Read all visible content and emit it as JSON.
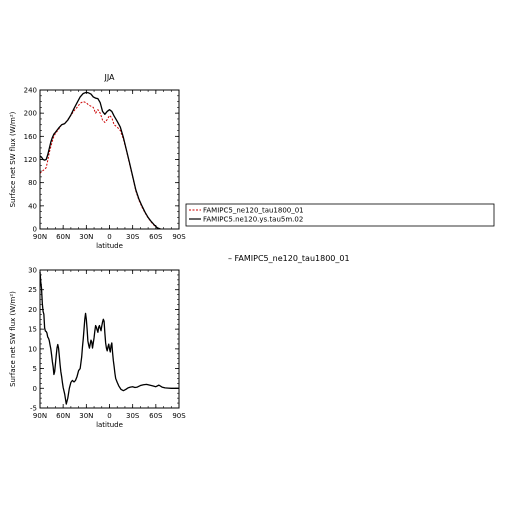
{
  "chart_data": [
    {
      "type": "line",
      "title": "JJA",
      "xlabel": "latitude",
      "ylabel": "Surface net SW flux (W/m²)",
      "x_ticks": [
        {
          "value": 90,
          "label": "90N"
        },
        {
          "value": 60,
          "label": "60N"
        },
        {
          "value": 30,
          "label": "30N"
        },
        {
          "value": 0,
          "label": "0"
        },
        {
          "value": -30,
          "label": "30S"
        },
        {
          "value": -60,
          "label": "60S"
        },
        {
          "value": -90,
          "label": "90S"
        }
      ],
      "xlim": [
        90,
        -90
      ],
      "ylim": [
        0,
        240
      ],
      "y_ticks": [
        0,
        40,
        80,
        120,
        160,
        200,
        240
      ],
      "grid": false,
      "legend_position": "right",
      "series": [
        {
          "name": "FAMIPC5_ne120_tau1800_01",
          "color": "#cc0000",
          "style": "dashed",
          "x": [
            90,
            88,
            86,
            84,
            82,
            80,
            78,
            76,
            74,
            72,
            70,
            66,
            62,
            58,
            54,
            50,
            46,
            42,
            38,
            34,
            30,
            27,
            24,
            21,
            18,
            15,
            12,
            9,
            6,
            3,
            0,
            -3,
            -6,
            -10,
            -14,
            -18,
            -22,
            -26,
            -30,
            -34,
            -38,
            -42,
            -46,
            -50,
            -54,
            -58,
            -62,
            -66
          ],
          "y": [
            96,
            99,
            101,
            103,
            106,
            118,
            132,
            142,
            152,
            160,
            165,
            172,
            180,
            182,
            189,
            196,
            204,
            210,
            217,
            220,
            218,
            214,
            212,
            210,
            200,
            206,
            200,
            188,
            184,
            189,
            196,
            192,
            180,
            176,
            170,
            155,
            135,
            112,
            90,
            66,
            50,
            38,
            28,
            19,
            12,
            6,
            2,
            0
          ]
        },
        {
          "name": "FAMIPC5.ne120.ys.tau5m.02",
          "color": "#000000",
          "style": "solid",
          "x": [
            90,
            88,
            86,
            84,
            82,
            80,
            78,
            76,
            74,
            72,
            70,
            66,
            62,
            58,
            54,
            50,
            46,
            42,
            38,
            34,
            30,
            27,
            24,
            21,
            18,
            15,
            12,
            9,
            6,
            3,
            0,
            -3,
            -6,
            -10,
            -14,
            -18,
            -22,
            -26,
            -30,
            -34,
            -38,
            -42,
            -46,
            -50,
            -54,
            -58,
            -62,
            -66
          ],
          "y": [
            126,
            124,
            120,
            119,
            120,
            128,
            139,
            150,
            158,
            164,
            167,
            174,
            180,
            182,
            188,
            197,
            208,
            218,
            228,
            234,
            236,
            235,
            233,
            228,
            226,
            225,
            218,
            203,
            198,
            203,
            206,
            203,
            195,
            186,
            176,
            158,
            136,
            114,
            91,
            68,
            52,
            40,
            29,
            20,
            13,
            7,
            2,
            0
          ]
        }
      ]
    },
    {
      "type": "line",
      "title": "",
      "xlabel": "latitude",
      "ylabel": "Surface net SW flux (W/m²)",
      "x_ticks": [
        {
          "value": 90,
          "label": "90N"
        },
        {
          "value": 60,
          "label": "60N"
        },
        {
          "value": 30,
          "label": "30N"
        },
        {
          "value": 0,
          "label": "0"
        },
        {
          "value": -30,
          "label": "30S"
        },
        {
          "value": -60,
          "label": "60S"
        },
        {
          "value": -90,
          "label": "90S"
        }
      ],
      "xlim": [
        90,
        -90
      ],
      "ylim": [
        -5,
        30
      ],
      "y_ticks": [
        -5,
        0,
        5,
        10,
        15,
        20,
        25,
        30
      ],
      "grid": false,
      "note": "– FAMIPC5_ne120_tau1800_01",
      "series": [
        {
          "color": "#000000",
          "style": "solid",
          "x": [
            90,
            89,
            88,
            87,
            86,
            85,
            84,
            83,
            82,
            81,
            80,
            79,
            78,
            77,
            76,
            75,
            74,
            73,
            72,
            71,
            70,
            69,
            68,
            67,
            66,
            65,
            64,
            63,
            62,
            61,
            60,
            58,
            56,
            54,
            52,
            50,
            48,
            46,
            44,
            42,
            40,
            38,
            37,
            36,
            35,
            34,
            33,
            32,
            31,
            30,
            29,
            28,
            27,
            26,
            25,
            24,
            23,
            22,
            21,
            20,
            19,
            18,
            17,
            16,
            15,
            14,
            13,
            12,
            11,
            10,
            9,
            8,
            7,
            6,
            5,
            4,
            3,
            2,
            1,
            0,
            -1,
            -2,
            -3,
            -4,
            -5,
            -6,
            -7,
            -8,
            -10,
            -12,
            -15,
            -18,
            -21,
            -24,
            -27,
            -30,
            -33,
            -36,
            -40,
            -44,
            -48,
            -52,
            -56,
            -60,
            -64,
            -68,
            -72,
            -76,
            -80,
            -85,
            -90
          ],
          "y": [
            29.5,
            27.0,
            25.3,
            21.5,
            19.5,
            18.8,
            15.3,
            14.5,
            14.4,
            14.0,
            13.0,
            12.7,
            12.1,
            11.0,
            10.0,
            8.5,
            6.8,
            5.5,
            3.5,
            4.2,
            6.2,
            8.3,
            10.2,
            11.1,
            10.2,
            8.2,
            6.0,
            4.2,
            3.0,
            1.5,
            0.2,
            -1.5,
            -4.0,
            -2.5,
            0.0,
            1.5,
            2.0,
            1.6,
            2.0,
            3.0,
            4.5,
            5.0,
            6.5,
            8.0,
            10.5,
            12.5,
            15.0,
            17.5,
            19.0,
            17.5,
            15.0,
            12.0,
            11.0,
            10.2,
            11.2,
            12.2,
            11.8,
            10.2,
            11.5,
            12.8,
            14.5,
            15.9,
            15.5,
            14.8,
            14.2,
            15.5,
            15.9,
            15.2,
            14.6,
            15.8,
            16.8,
            17.5,
            17.0,
            14.0,
            11.5,
            10.2,
            9.5,
            10.5,
            11.2,
            10.0,
            9.2,
            10.8,
            11.5,
            9.0,
            7.0,
            5.5,
            3.8,
            2.5,
            1.5,
            0.6,
            -0.3,
            -0.6,
            -0.3,
            0.1,
            0.3,
            0.4,
            0.2,
            0.3,
            0.7,
            0.9,
            1.0,
            0.8,
            0.6,
            0.4,
            0.8,
            0.3,
            0.1,
            0.05,
            0.0,
            0.0,
            0.0
          ]
        }
      ]
    }
  ]
}
